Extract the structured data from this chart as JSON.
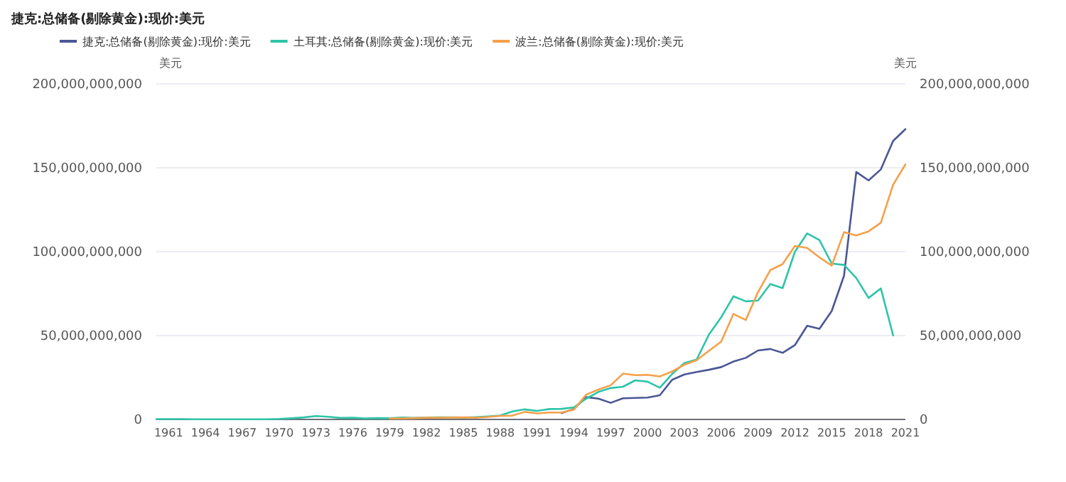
{
  "chart_data": {
    "type": "line",
    "title": "捷克:总储备(剔除黄金):现价:美元",
    "ylabel": "美元",
    "y2label": "美元",
    "x": [
      1960,
      1961,
      1962,
      1963,
      1964,
      1965,
      1966,
      1967,
      1968,
      1969,
      1970,
      1971,
      1972,
      1973,
      1974,
      1975,
      1976,
      1977,
      1978,
      1979,
      1980,
      1981,
      1982,
      1983,
      1984,
      1985,
      1986,
      1987,
      1988,
      1989,
      1990,
      1991,
      1992,
      1993,
      1994,
      1995,
      1996,
      1997,
      1998,
      1999,
      2000,
      2001,
      2002,
      2003,
      2004,
      2005,
      2006,
      2007,
      2008,
      2009,
      2010,
      2011,
      2012,
      2013,
      2014,
      2015,
      2016,
      2017,
      2018,
      2019,
      2020,
      2021
    ],
    "xlim": [
      1960,
      2021
    ],
    "xticks": [
      1961,
      1964,
      1967,
      1970,
      1973,
      1976,
      1979,
      1982,
      1985,
      1988,
      1991,
      1994,
      1997,
      2000,
      2003,
      2006,
      2009,
      2012,
      2015,
      2018,
      2021
    ],
    "ylim": [
      0,
      200000000000
    ],
    "yticks": [
      {
        "value": 0,
        "label": "0"
      },
      {
        "value": 50000000000,
        "label": "50,000,000,000"
      },
      {
        "value": 100000000000,
        "label": "100,000,000,000"
      },
      {
        "value": 150000000000,
        "label": "150,000,000,000"
      },
      {
        "value": 200000000000,
        "label": "200,000,000,000"
      }
    ],
    "y2lim": [
      0,
      200000000000
    ],
    "y2ticks": [
      {
        "value": 0,
        "label": "0"
      },
      {
        "value": 50000000000,
        "label": "50,000,000,000"
      },
      {
        "value": 100000000000,
        "label": "100,000,000,000"
      },
      {
        "value": 150000000000,
        "label": "150,000,000,000"
      },
      {
        "value": 200000000000,
        "label": "200,000,000,000"
      }
    ],
    "grid": "y",
    "legend": "top",
    "marker": "none",
    "line_style": "solid",
    "series": [
      {
        "name": "捷克:总储备(剔除黄金):现价:美元",
        "color": "#4b5694",
        "values": [
          null,
          null,
          null,
          null,
          null,
          null,
          null,
          null,
          null,
          null,
          null,
          null,
          null,
          null,
          null,
          null,
          null,
          null,
          null,
          null,
          null,
          null,
          null,
          null,
          null,
          null,
          null,
          null,
          null,
          null,
          null,
          null,
          null,
          3800000000.0,
          6200000000.0,
          13300000000.0,
          12400000000.0,
          9900000000.0,
          12600000000.0,
          12800000000.0,
          13000000000.0,
          14400000000.0,
          23600000000.0,
          26800000000.0,
          28300000000.0,
          29600000000.0,
          31200000000.0,
          34500000000.0,
          36700000000.0,
          41100000000.0,
          42000000000.0,
          39700000000.0,
          44300000000.0,
          55800000000.0,
          54000000000.0,
          64600000000.0,
          85600000000.0,
          147500000000.0,
          142500000000.0,
          149000000000.0,
          166000000000.0,
          173000000000.0
        ]
      },
      {
        "name": "土耳其:总储备(剔除黄金):现价:美元",
        "color": "#2ec4a9",
        "values": [
          200000000.0,
          200000000.0,
          200000000.0,
          100000000.0,
          100000000.0,
          100000000.0,
          100000000.0,
          100000000.0,
          100000000.0,
          100000000.0,
          300000000.0,
          700000000.0,
          1200000000.0,
          2000000000.0,
          1600000000.0,
          900000000.0,
          1000000000.0,
          600000000.0,
          800000000.0,
          700000000.0,
          1100000000.0,
          900000000.0,
          1100000000.0,
          1300000000.0,
          1300000000.0,
          1100000000.0,
          1400000000.0,
          1800000000.0,
          2300000000.0,
          4800000000.0,
          6000000000.0,
          5100000000.0,
          6200000000.0,
          6300000000.0,
          7200000000.0,
          12400000000.0,
          16400000000.0,
          18700000000.0,
          19500000000.0,
          23300000000.0,
          22500000000.0,
          18900000000.0,
          27100000000.0,
          33600000000.0,
          35700000000.0,
          50600000000.0,
          60900000000.0,
          73400000000.0,
          70400000000.0,
          70900000000.0,
          80700000000.0,
          78300000000.0,
          99900000000.0,
          110900000000.0,
          106900000000.0,
          92900000000.0,
          92100000000.0,
          84300000000.0,
          72400000000.0,
          78100000000.0,
          50100000000.0,
          null
        ]
      },
      {
        "name": "波兰:总储备(剔除黄金):现价:美元",
        "color": "#f5a04a",
        "values": [
          null,
          null,
          null,
          null,
          null,
          null,
          null,
          null,
          null,
          null,
          null,
          null,
          null,
          null,
          null,
          null,
          null,
          null,
          null,
          500000000.0,
          600000000.0,
          800000000.0,
          1000000000.0,
          1000000000.0,
          1100000000.0,
          1200000000.0,
          1000000000.0,
          1500000000.0,
          2100000000.0,
          2300000000.0,
          4500000000.0,
          3600000000.0,
          4100000000.0,
          4100000000.0,
          5800000000.0,
          14800000000.0,
          17800000000.0,
          20400000000.0,
          27300000000.0,
          26400000000.0,
          26600000000.0,
          25600000000.0,
          28600000000.0,
          32600000000.0,
          35300000000.0,
          40900000000.0,
          46400000000.0,
          62900000000.0,
          59300000000.0,
          75900000000.0,
          89000000000.0,
          92600000000.0,
          103400000000.0,
          102200000000.0,
          96600000000.0,
          91700000000.0,
          111600000000.0,
          109600000000.0,
          112100000000.0,
          117200000000.0,
          139900000000.0,
          152000000000.0
        ]
      }
    ]
  }
}
